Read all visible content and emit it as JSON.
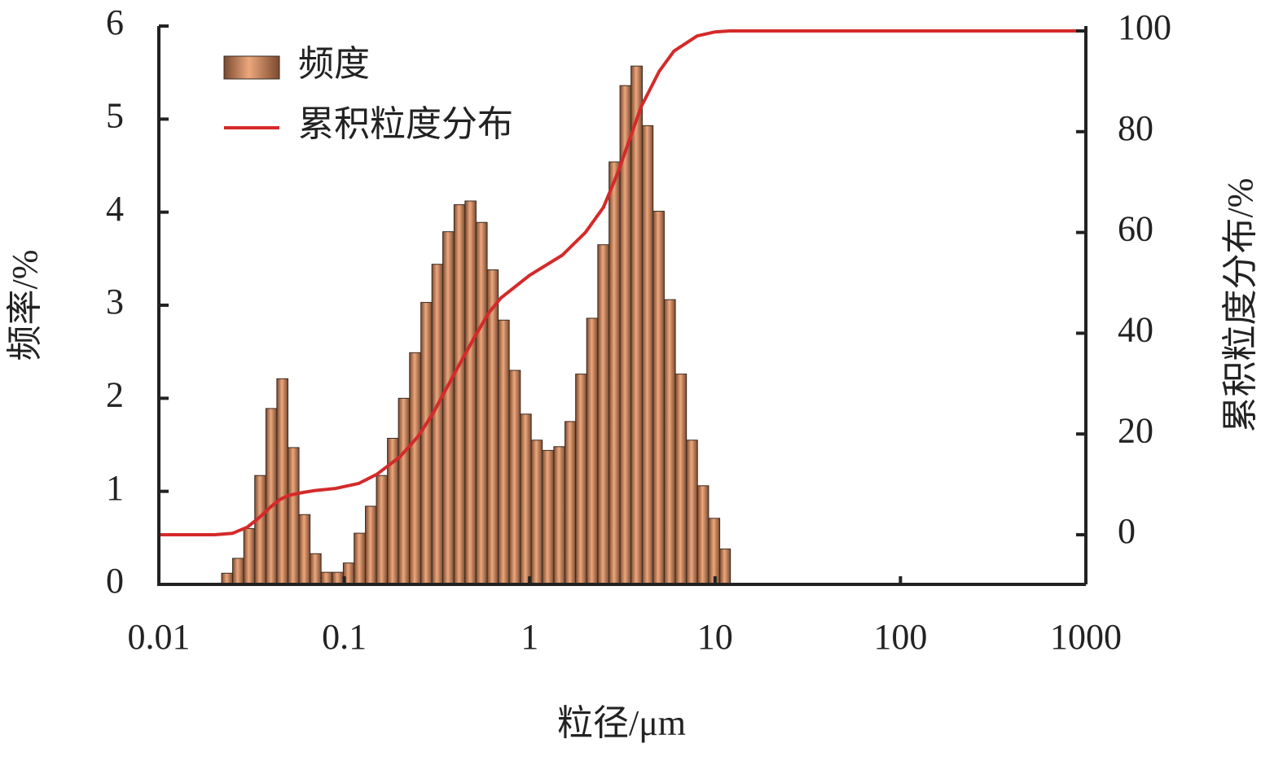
{
  "chart_data": {
    "type": "histogram",
    "xlabel": "粒径/μm",
    "ylabel": "频率/%",
    "y2label": "累积粒度分布/%",
    "xscale": "log",
    "xlim": [
      0.01,
      1000
    ],
    "xticks": [
      0.01,
      0.1,
      1,
      10,
      100,
      1000
    ],
    "ylim": [
      0,
      6
    ],
    "yticks": [
      0,
      1,
      2,
      3,
      4,
      5,
      6
    ],
    "y2lim": [
      -9.85,
      100.97
    ],
    "y2ticks": [
      0,
      20,
      40,
      60,
      80,
      100
    ],
    "legend": "upper left",
    "bins": [
      0.0218,
      0.025,
      0.0287,
      0.0329,
      0.0378,
      0.0433,
      0.0497,
      0.057,
      0.0654,
      0.075,
      0.0861,
      0.0988,
      0.113,
      0.13,
      0.149,
      0.171,
      0.196,
      0.225,
      0.259,
      0.297,
      0.34,
      0.391,
      0.448,
      0.514,
      0.59,
      0.677,
      0.776,
      0.891,
      1.02,
      1.17,
      1.35,
      1.55,
      1.77,
      2.03,
      2.33,
      2.68,
      3.07,
      3.52,
      4.05,
      4.63,
      5.32,
      6.11,
      7.01,
      8.04,
      9.23,
      10.6,
      12.1
    ],
    "series": [
      {
        "name": "频度",
        "type": "histogram",
        "color": "#eda77c",
        "values": [
          0.12,
          0.28,
          0.6,
          1.17,
          1.89,
          2.21,
          1.47,
          0.75,
          0.33,
          0.13,
          0.13,
          0.23,
          0.55,
          0.84,
          1.17,
          1.57,
          2.0,
          2.49,
          3.03,
          3.44,
          3.79,
          4.08,
          4.12,
          3.89,
          3.38,
          2.84,
          2.3,
          1.83,
          1.55,
          1.44,
          1.48,
          1.75,
          2.26,
          2.86,
          3.65,
          4.54,
          5.36,
          5.57,
          4.93,
          4.01,
          3.06,
          2.26,
          1.55,
          1.06,
          0.71,
          0.38
        ]
      },
      {
        "name": "累积粒度分布",
        "type": "line",
        "axis": "y2",
        "color": "#d42a2a",
        "x": [
          0.01,
          0.02,
          0.025,
          0.03,
          0.035,
          0.04,
          0.045,
          0.05,
          0.06,
          0.07,
          0.09,
          0.12,
          0.15,
          0.2,
          0.25,
          0.3,
          0.4,
          0.5,
          0.6,
          0.7,
          1,
          1.5,
          2,
          2.5,
          3,
          3.5,
          4,
          5,
          6,
          8,
          10,
          12,
          1000
        ],
        "values": [
          0,
          0,
          0.3,
          1.5,
          3.5,
          5.5,
          7,
          7.8,
          8.4,
          8.8,
          9.2,
          10.2,
          12,
          15.5,
          19.5,
          24,
          32.5,
          39,
          44,
          47,
          51.5,
          55.5,
          60,
          65,
          72,
          79,
          85,
          92,
          96,
          99,
          99.8,
          100,
          100
        ]
      }
    ]
  }
}
